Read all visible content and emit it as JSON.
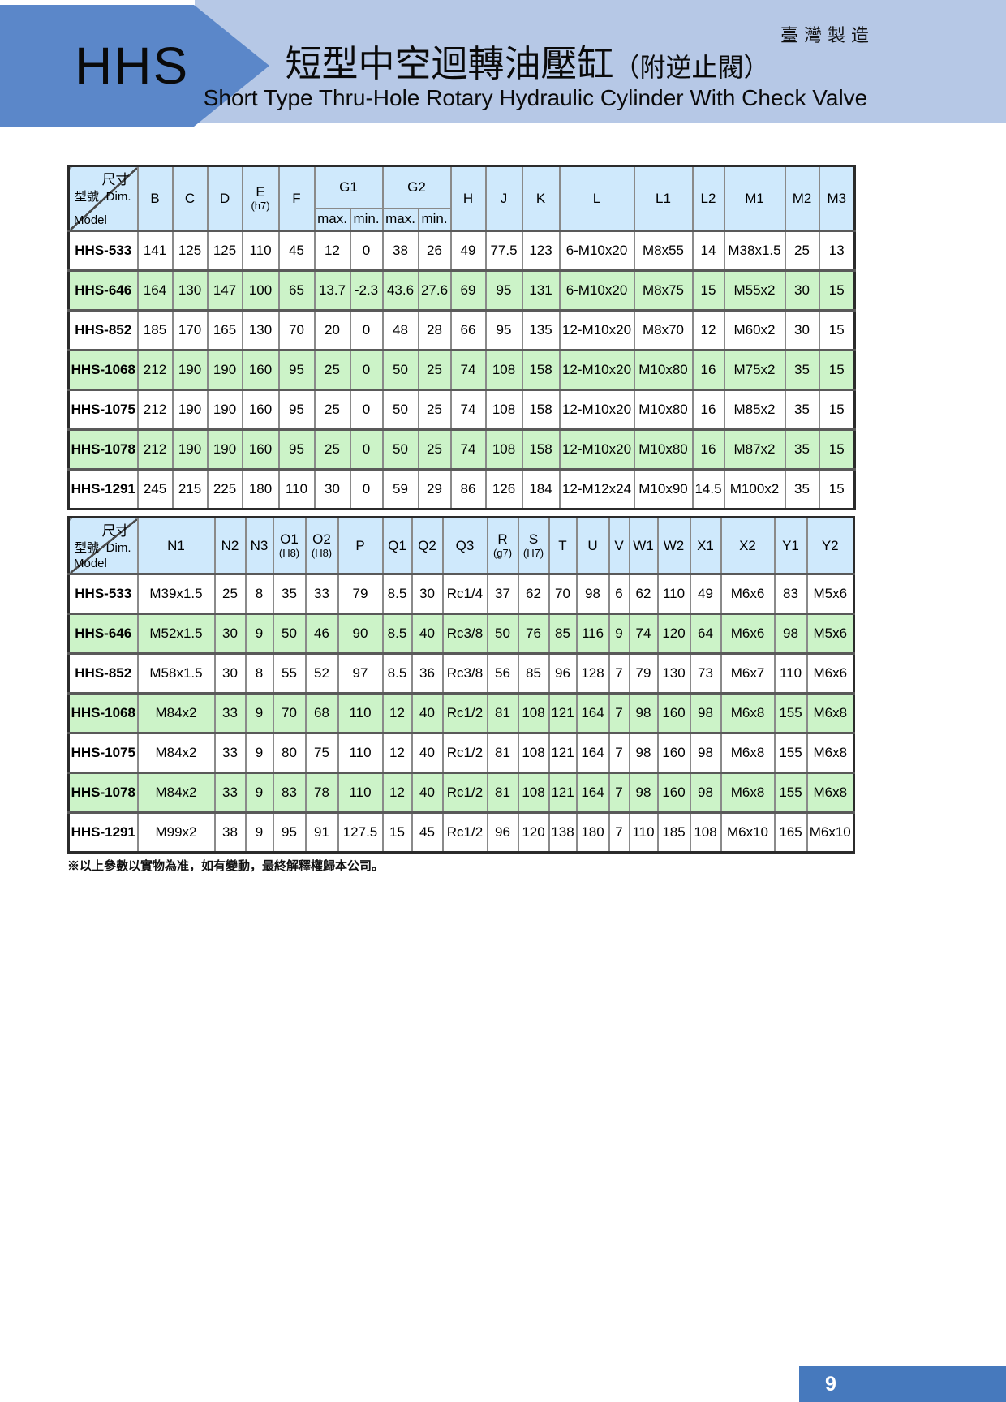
{
  "header": {
    "brand": "HHS",
    "made_in": "臺灣製造",
    "title_zh_main": "短型中空迴轉油壓缸",
    "title_zh_paren": "（附逆止閥）",
    "title_en": "Short Type Thru-Hole Rotary Hydraulic Cylinder With Check Valve"
  },
  "corner": {
    "dim_zh": "尺寸",
    "dim_en": "Dim.",
    "model_zh": "型號",
    "model_en": "Model"
  },
  "table1": {
    "head": {
      "b": "B",
      "c": "C",
      "d": "D",
      "e": "E",
      "e_sub": "(h7)",
      "f": "F",
      "g1": "G1",
      "g2": "G2",
      "max": "max.",
      "min": "min.",
      "h": "H",
      "j": "J",
      "k": "K",
      "l": "L",
      "l1": "L1",
      "l2": "L2",
      "m1": "M1",
      "m2": "M2",
      "m3": "M3"
    },
    "rows": [
      {
        "model": "HHS-533",
        "values": [
          "141",
          "125",
          "125",
          "110",
          "45",
          "12",
          "0",
          "38",
          "26",
          "49",
          "77.5",
          "123",
          "6-M10x20",
          "M8x55",
          "14",
          "M38x1.5",
          "25",
          "13"
        ]
      },
      {
        "model": "HHS-646",
        "values": [
          "164",
          "130",
          "147",
          "100",
          "65",
          "13.7",
          "-2.3",
          "43.6",
          "27.6",
          "69",
          "95",
          "131",
          "6-M10x20",
          "M8x75",
          "15",
          "M55x2",
          "30",
          "15"
        ]
      },
      {
        "model": "HHS-852",
        "values": [
          "185",
          "170",
          "165",
          "130",
          "70",
          "20",
          "0",
          "48",
          "28",
          "66",
          "95",
          "135",
          "12-M10x20",
          "M8x70",
          "12",
          "M60x2",
          "30",
          "15"
        ]
      },
      {
        "model": "HHS-1068",
        "values": [
          "212",
          "190",
          "190",
          "160",
          "95",
          "25",
          "0",
          "50",
          "25",
          "74",
          "108",
          "158",
          "12-M10x20",
          "M10x80",
          "16",
          "M75x2",
          "35",
          "15"
        ]
      },
      {
        "model": "HHS-1075",
        "values": [
          "212",
          "190",
          "190",
          "160",
          "95",
          "25",
          "0",
          "50",
          "25",
          "74",
          "108",
          "158",
          "12-M10x20",
          "M10x80",
          "16",
          "M85x2",
          "35",
          "15"
        ]
      },
      {
        "model": "HHS-1078",
        "values": [
          "212",
          "190",
          "190",
          "160",
          "95",
          "25",
          "0",
          "50",
          "25",
          "74",
          "108",
          "158",
          "12-M10x20",
          "M10x80",
          "16",
          "M87x2",
          "35",
          "15"
        ]
      },
      {
        "model": "HHS-1291",
        "values": [
          "245",
          "215",
          "225",
          "180",
          "110",
          "30",
          "0",
          "59",
          "29",
          "86",
          "126",
          "184",
          "12-M12x24",
          "M10x90",
          "14.5",
          "M100x2",
          "35",
          "15"
        ]
      }
    ]
  },
  "table2": {
    "head": {
      "n1": "N1",
      "n2": "N2",
      "n3": "N3",
      "o1": "O1",
      "o1_sub": "(H8)",
      "o2": "O2",
      "o2_sub": "(H8)",
      "p": "P",
      "q1": "Q1",
      "q2": "Q2",
      "q3": "Q3",
      "r": "R",
      "r_sub": "(g7)",
      "s": "S",
      "s_sub": "(H7)",
      "t": "T",
      "u": "U",
      "v": "V",
      "w1": "W1",
      "w2": "W2",
      "x1": "X1",
      "x2": "X2",
      "y1": "Y1",
      "y2": "Y2"
    },
    "rows": [
      {
        "model": "HHS-533",
        "values": [
          "M39x1.5",
          "25",
          "8",
          "35",
          "33",
          "79",
          "8.5",
          "30",
          "Rc1/4",
          "37",
          "62",
          "70",
          "98",
          "6",
          "62",
          "110",
          "49",
          "M6x6",
          "83",
          "M5x6"
        ]
      },
      {
        "model": "HHS-646",
        "values": [
          "M52x1.5",
          "30",
          "9",
          "50",
          "46",
          "90",
          "8.5",
          "40",
          "Rc3/8",
          "50",
          "76",
          "85",
          "116",
          "9",
          "74",
          "120",
          "64",
          "M6x6",
          "98",
          "M5x6"
        ]
      },
      {
        "model": "HHS-852",
        "values": [
          "M58x1.5",
          "30",
          "8",
          "55",
          "52",
          "97",
          "8.5",
          "36",
          "Rc3/8",
          "56",
          "85",
          "96",
          "128",
          "7",
          "79",
          "130",
          "73",
          "M6x7",
          "110",
          "M6x6"
        ]
      },
      {
        "model": "HHS-1068",
        "values": [
          "M84x2",
          "33",
          "9",
          "70",
          "68",
          "110",
          "12",
          "40",
          "Rc1/2",
          "81",
          "108",
          "121",
          "164",
          "7",
          "98",
          "160",
          "98",
          "M6x8",
          "155",
          "M6x8"
        ]
      },
      {
        "model": "HHS-1075",
        "values": [
          "M84x2",
          "33",
          "9",
          "80",
          "75",
          "110",
          "12",
          "40",
          "Rc1/2",
          "81",
          "108",
          "121",
          "164",
          "7",
          "98",
          "160",
          "98",
          "M6x8",
          "155",
          "M6x8"
        ]
      },
      {
        "model": "HHS-1078",
        "values": [
          "M84x2",
          "33",
          "9",
          "83",
          "78",
          "110",
          "12",
          "40",
          "Rc1/2",
          "81",
          "108",
          "121",
          "164",
          "7",
          "98",
          "160",
          "98",
          "M6x8",
          "155",
          "M6x8"
        ]
      },
      {
        "model": "HHS-1291",
        "values": [
          "M99x2",
          "38",
          "9",
          "95",
          "91",
          "127.5",
          "15",
          "45",
          "Rc1/2",
          "96",
          "120",
          "138",
          "180",
          "7",
          "110",
          "185",
          "108",
          "M6x10",
          "165",
          "M6x10"
        ]
      }
    ]
  },
  "footnote": "※以上參數以實物為准，如有變動，最終解釋權歸本公司。",
  "page_number": "9",
  "colors": {
    "banner": "#b6c8e6",
    "arrow": "#5b87c9",
    "table_head": "#cfe9fc",
    "row_green": "#ccf3c8",
    "page_box": "#4679bd"
  }
}
